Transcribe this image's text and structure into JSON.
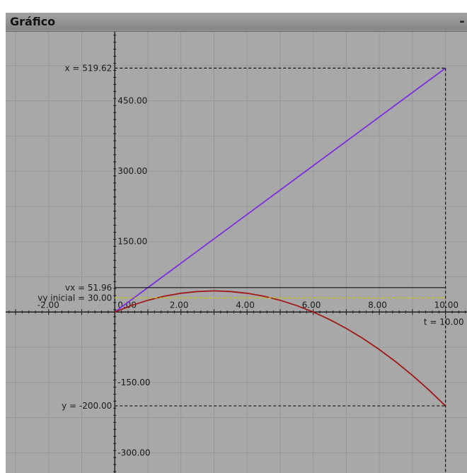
{
  "window": {
    "title": "Gráfico",
    "minimize_label": "-"
  },
  "chart_data": {
    "type": "line",
    "xlim": [
      -3.3,
      10.65
    ],
    "ylim": [
      -343,
      597
    ],
    "grid": true,
    "x_ticks": [
      -2,
      2,
      4,
      6,
      8,
      10
    ],
    "x_tick_labels": [
      "-2.00",
      "2.00",
      "4.00",
      "6.00",
      "8.00",
      "10.00"
    ],
    "origin_label": "0.00",
    "y_ticks": [
      450,
      300,
      150,
      -150,
      -300
    ],
    "y_tick_labels": [
      "450.00",
      "300.00",
      "150.00",
      "-150.00",
      "-300.00"
    ],
    "series": [
      {
        "color": "#7b2ee0",
        "x": [
          0,
          10
        ],
        "y": [
          0,
          519.62
        ]
      },
      {
        "color": "#a01818",
        "x": [
          0,
          0.5,
          1,
          1.5,
          2,
          2.5,
          3,
          3.5,
          4,
          4.5,
          5,
          5.5,
          6,
          6.5,
          7,
          7.5,
          8,
          8.5,
          9,
          9.5,
          10
        ],
        "y": [
          0,
          13.75,
          25,
          33.75,
          40,
          43.75,
          45,
          43.75,
          40,
          33.75,
          25,
          13.75,
          0,
          -16.25,
          -35,
          -56.25,
          -80,
          -106.25,
          -135,
          -166.25,
          -200
        ]
      }
    ],
    "reference_lines": [
      {
        "label": "x = 519.62",
        "y": 519.62,
        "x_end": 10,
        "color": "#111111",
        "dash": true
      },
      {
        "label": "vx = 51.96",
        "y": 51.96,
        "x_end": 10,
        "color": "#111111",
        "dash": false
      },
      {
        "label": "vy inicial = 30.00",
        "y": 30,
        "x_end": 10,
        "color": "#c8c800",
        "dash": true
      },
      {
        "label": "y = -200.00",
        "y": -200,
        "x_end": 10,
        "color": "#111111",
        "dash": true
      }
    ],
    "time_marker": {
      "label": "t = 10.00",
      "x": 10
    }
  }
}
